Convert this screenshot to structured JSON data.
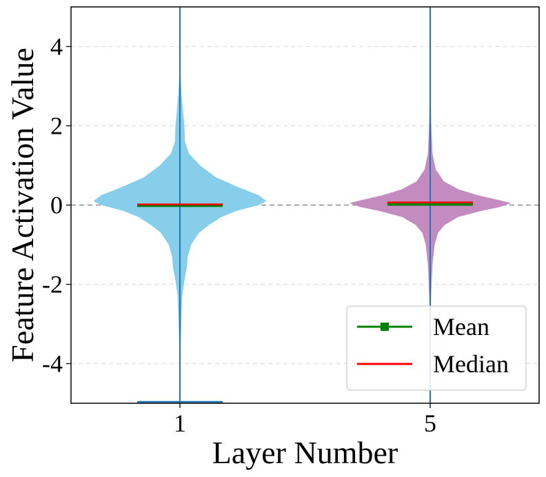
{
  "chart_data": {
    "type": "violin",
    "title": "",
    "xlabel": "Layer Number",
    "ylabel": "Feature Activation Value",
    "ylim": [
      -5,
      5
    ],
    "yticks": [
      -4,
      -2,
      0,
      2,
      4
    ],
    "ytick_labels": [
      "-4",
      "-2",
      "0",
      "2",
      "4"
    ],
    "grid": true,
    "reference_line_y": 0,
    "legend": {
      "placement": "lower-right",
      "entries": [
        {
          "label": "Mean",
          "color": "#008000",
          "marker": "square"
        },
        {
          "label": "Median",
          "color": "#ff0000"
        }
      ]
    },
    "categories": [
      "1",
      "5"
    ],
    "series": [
      {
        "category": "1",
        "color": "#87ceeb",
        "line_color": "#1f77b4",
        "mean": 0.0,
        "median": 0.0,
        "min": -5.0,
        "max": 5.0,
        "profile": [
          {
            "y": -3.6,
            "half_width": 0.005
          },
          {
            "y": -3.0,
            "half_width": 0.012
          },
          {
            "y": -2.3,
            "half_width": 0.02
          },
          {
            "y": -1.9,
            "half_width": 0.04
          },
          {
            "y": -1.6,
            "half_width": 0.06
          },
          {
            "y": -1.3,
            "half_width": 0.07
          },
          {
            "y": -1.0,
            "half_width": 0.1
          },
          {
            "y": -0.7,
            "half_width": 0.17
          },
          {
            "y": -0.5,
            "half_width": 0.26
          },
          {
            "y": -0.3,
            "half_width": 0.37
          },
          {
            "y": -0.15,
            "half_width": 0.5
          },
          {
            "y": 0.0,
            "half_width": 0.7
          },
          {
            "y": 0.1,
            "half_width": 0.77
          },
          {
            "y": 0.25,
            "half_width": 0.7
          },
          {
            "y": 0.45,
            "half_width": 0.52
          },
          {
            "y": 0.7,
            "half_width": 0.32
          },
          {
            "y": 1.0,
            "half_width": 0.18
          },
          {
            "y": 1.3,
            "half_width": 0.08
          },
          {
            "y": 1.6,
            "half_width": 0.045
          },
          {
            "y": 2.0,
            "half_width": 0.04
          },
          {
            "y": 2.3,
            "half_width": 0.03
          },
          {
            "y": 2.8,
            "half_width": 0.015
          },
          {
            "y": 3.3,
            "half_width": 0.005
          }
        ]
      },
      {
        "category": "5",
        "color": "#c38bbf",
        "line_color": "#1f77b4",
        "mean": 0.03,
        "median": 0.05,
        "min": -5.0,
        "max": 5.0,
        "profile": [
          {
            "y": -2.6,
            "half_width": 0.005
          },
          {
            "y": -2.0,
            "half_width": 0.012
          },
          {
            "y": -1.5,
            "half_width": 0.02
          },
          {
            "y": -1.0,
            "half_width": 0.04
          },
          {
            "y": -0.7,
            "half_width": 0.07
          },
          {
            "y": -0.5,
            "half_width": 0.13
          },
          {
            "y": -0.3,
            "half_width": 0.25
          },
          {
            "y": -0.15,
            "half_width": 0.45
          },
          {
            "y": -0.05,
            "half_width": 0.62
          },
          {
            "y": 0.05,
            "half_width": 0.72
          },
          {
            "y": 0.12,
            "half_width": 0.62
          },
          {
            "y": 0.25,
            "half_width": 0.42
          },
          {
            "y": 0.4,
            "half_width": 0.25
          },
          {
            "y": 0.6,
            "half_width": 0.12
          },
          {
            "y": 0.9,
            "half_width": 0.05
          },
          {
            "y": 1.3,
            "half_width": 0.02
          },
          {
            "y": 2.0,
            "half_width": 0.01
          },
          {
            "y": 3.0,
            "half_width": 0.003
          }
        ]
      }
    ]
  }
}
